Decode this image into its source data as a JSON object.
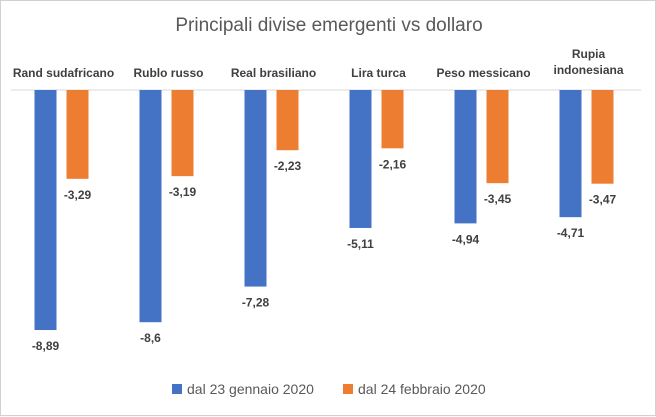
{
  "chart_data": {
    "type": "bar",
    "title": "Principali divise emergenti vs dollaro",
    "categories": [
      [
        "Rand sudafricano"
      ],
      [
        "Rublo russo"
      ],
      [
        "Real brasiliano"
      ],
      [
        "Lira turca"
      ],
      [
        "Peso messicano"
      ],
      [
        "Rupia",
        "indonesiana"
      ]
    ],
    "series": [
      {
        "name": "dal 23 gennaio 2020",
        "color": "#4472C4",
        "values": [
          -8.89,
          -8.6,
          -7.28,
          -5.11,
          -4.94,
          -4.71
        ],
        "labels": [
          "-8,89",
          "-8,6",
          "-7,28",
          "-5,11",
          "-4,94",
          "-4,71"
        ]
      },
      {
        "name": "dal 24 febbraio 2020",
        "color": "#ED7D31",
        "values": [
          -3.29,
          -3.19,
          -2.23,
          -2.16,
          -3.45,
          -3.47
        ],
        "labels": [
          "-3,29",
          "-3,19",
          "-2,23",
          "-2,16",
          "-3,45",
          "-3,47"
        ]
      }
    ],
    "ylim": [
      -10,
      0
    ],
    "grid": false,
    "legend": "bottom"
  }
}
